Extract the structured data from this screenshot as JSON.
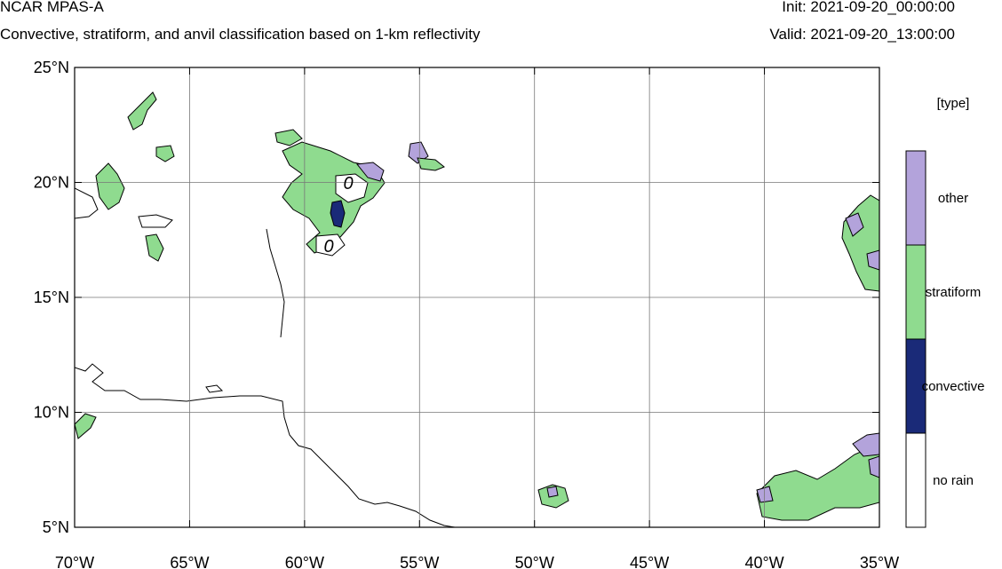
{
  "header": {
    "title": "NCAR MPAS-A",
    "subtitle": "Convective, stratiform, and anvil classification based on 1-km reflectivity",
    "init": "Init: 2021-09-20_00:00:00",
    "valid": "Valid: 2021-09-20_13:00:00"
  },
  "map": {
    "lon_range": [
      -70,
      -35
    ],
    "lat_range": [
      5,
      25
    ],
    "lon_ticks": [
      -70,
      -65,
      -60,
      -55,
      -50,
      -45,
      -40,
      -35
    ],
    "lat_ticks": [
      5,
      10,
      15,
      20,
      25
    ],
    "lon_tick_labels": [
      "70°W",
      "65°W",
      "60°W",
      "55°W",
      "50°W",
      "45°W",
      "40°W",
      "35°W"
    ],
    "lat_tick_labels": [
      "5°N",
      "10°N",
      "15°N",
      "20°N",
      "25°N"
    ],
    "grid_lines": true,
    "contour_labels": [
      "0",
      "0"
    ]
  },
  "legend": {
    "title": "[type]",
    "entries": [
      {
        "label": "other",
        "color": "#b3a3db"
      },
      {
        "label": "stratiform",
        "color": "#8fdb8f"
      },
      {
        "label": "convective",
        "color": "#1a2a78"
      },
      {
        "label": "no rain",
        "color": "#ffffff"
      }
    ]
  },
  "colors": {
    "other": "#b3a3db",
    "stratiform": "#8fdb8f",
    "convective": "#1a2a78",
    "contour": "#000000"
  }
}
